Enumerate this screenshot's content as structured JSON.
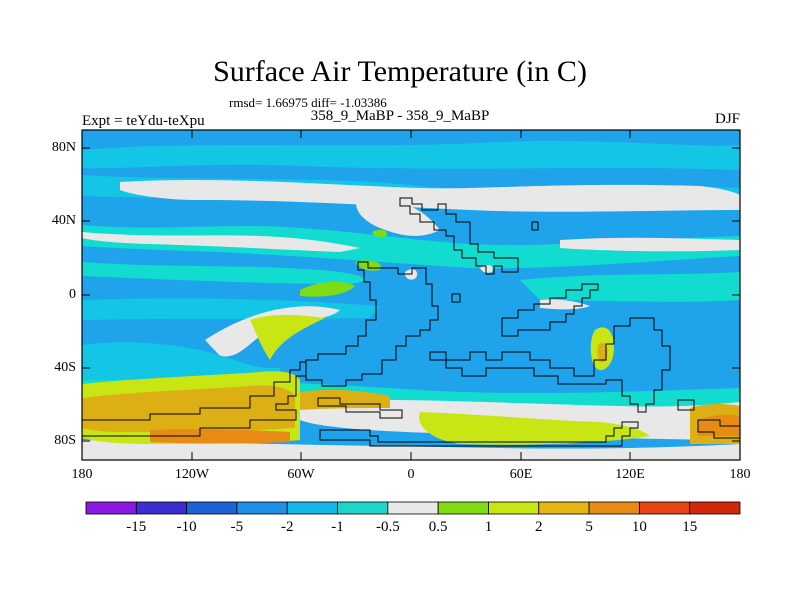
{
  "title": "Surface Air Temperature (in C)",
  "stats": "rmsd= 1.66975 diff= -1.03386",
  "subtitle": "358_9_MaBP - 358_9_MaBP",
  "left_label": "Expt = teYdu-teXpu",
  "right_label": "DJF",
  "lat_ticks": [
    "80N",
    "40N",
    "0",
    "40S",
    "80S"
  ],
  "lon_ticks": [
    "180",
    "120W",
    "60W",
    "0",
    "60E",
    "120E",
    "180"
  ],
  "colorbar": {
    "labels": [
      "-15",
      "-10",
      "-5",
      "-2",
      "-1",
      "-0.5",
      "0.5",
      "1",
      "2",
      "5",
      "10",
      "15"
    ],
    "colors": [
      "#8a1ae0",
      "#3b2fd0",
      "#1e63d6",
      "#1e90e6",
      "#14b6e8",
      "#1ed6c8",
      "#e8e8e8",
      "#7fdc14",
      "#c8e614",
      "#e6b414",
      "#e68c14",
      "#e64614",
      "#d2280a"
    ]
  },
  "colors": {
    "ocean_blue": "#1fa3ea",
    "light_blue": "#13c6e6",
    "cyan": "#12dcd0",
    "neutral": "#e8e8e8",
    "green": "#7fdc14",
    "yellow_green": "#c8e614",
    "gold": "#dcb014",
    "orange": "#e68c14"
  }
}
